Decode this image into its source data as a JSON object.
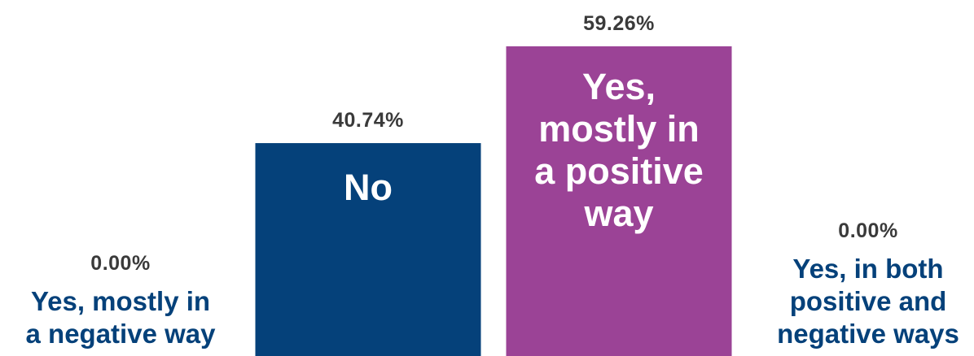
{
  "chart_data": {
    "type": "bar",
    "categories": [
      "Yes, mostly in a negative way",
      "No",
      "Yes, mostly in a positive way",
      "Yes, in both positive and negative ways"
    ],
    "values": [
      0.0,
      40.74,
      59.26,
      0.0
    ],
    "data_labels": [
      "0.00%",
      "40.74%",
      "59.26%",
      "0.00%"
    ],
    "title": "",
    "xlabel": "",
    "ylabel": "",
    "ylim": [
      0,
      59.26
    ],
    "grid": false,
    "legend": "none",
    "colors": [
      "#1f4e8c",
      "#05417a",
      "#9b4396",
      "#1f4e8c"
    ],
    "label_color": "#3a3a3a",
    "category_label_outside_color": "#05417a",
    "category_label_inside_color": "#ffffff"
  }
}
